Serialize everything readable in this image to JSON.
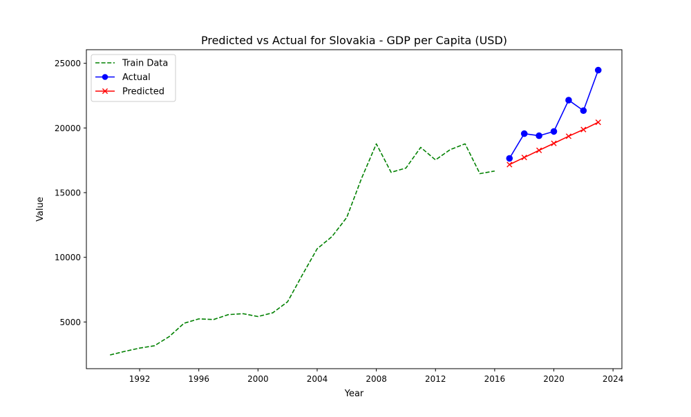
{
  "chart_data": {
    "type": "line",
    "title": "Predicted vs Actual for Slovakia - GDP per Capita (USD)",
    "xlabel": "Year",
    "ylabel": "Value",
    "xlim": [
      1988.4,
      2024.6
    ],
    "ylim": [
      1390,
      26050
    ],
    "x_ticks": [
      1992,
      1996,
      2000,
      2004,
      2008,
      2012,
      2016,
      2020,
      2024
    ],
    "y_ticks": [
      5000,
      10000,
      15000,
      20000,
      25000
    ],
    "legend_position": "top-left",
    "series": [
      {
        "name": "Train Data",
        "color": "#008000",
        "style": "dashed",
        "marker": "none",
        "x": [
          1990,
          1991,
          1992,
          1993,
          1994,
          1995,
          1996,
          1997,
          1998,
          1999,
          2000,
          2001,
          2002,
          2003,
          2004,
          2005,
          2006,
          2007,
          2008,
          2009,
          2010,
          2011,
          2012,
          2013,
          2014,
          2015,
          2016
        ],
        "y": [
          2450,
          2730,
          2980,
          3160,
          3870,
          4900,
          5240,
          5190,
          5570,
          5640,
          5420,
          5710,
          6560,
          8640,
          10660,
          11600,
          13080,
          16100,
          18770,
          16570,
          16900,
          18500,
          17530,
          18330,
          18770,
          16470,
          16670
        ]
      },
      {
        "name": "Actual",
        "color": "#0000ff",
        "style": "solid",
        "marker": "circle",
        "x": [
          2017,
          2018,
          2019,
          2020,
          2021,
          2022,
          2023
        ],
        "y": [
          17650,
          19560,
          19400,
          19730,
          22150,
          21340,
          24470
        ]
      },
      {
        "name": "Predicted",
        "color": "#ff0000",
        "style": "solid",
        "marker": "x",
        "x": [
          2017,
          2018,
          2019,
          2020,
          2021,
          2022,
          2023
        ],
        "y": [
          17170,
          17720,
          18270,
          18810,
          19360,
          19880,
          20440
        ]
      }
    ]
  }
}
